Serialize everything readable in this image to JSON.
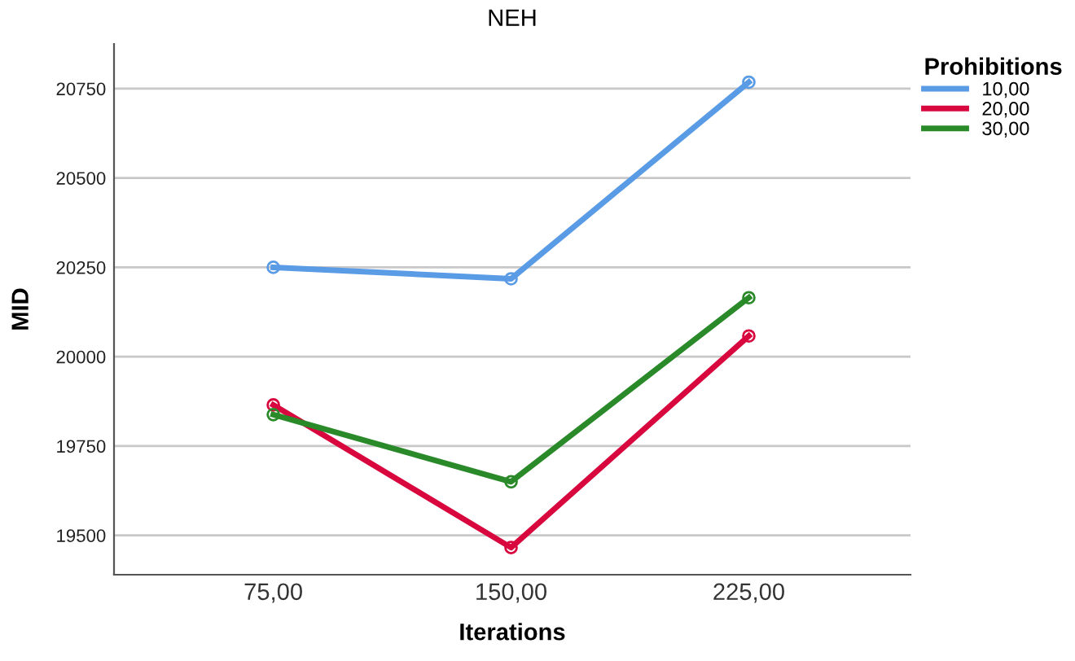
{
  "chart_data": {
    "type": "line",
    "title": "NEH",
    "xlabel": "Iterations",
    "ylabel": "MID",
    "legend_title": "Prohibitions",
    "categories": [
      "75,00",
      "150,00",
      "225,00"
    ],
    "series": [
      {
        "name": "10,00",
        "color": "#5a9be6",
        "values": [
          20250,
          20218,
          20768
        ]
      },
      {
        "name": "20,00",
        "color": "#d8073e",
        "values": [
          19865,
          19466,
          20058
        ]
      },
      {
        "name": "30,00",
        "color": "#2a8a2a",
        "values": [
          19838,
          19650,
          20165
        ]
      }
    ],
    "ylim": [
      19390,
      20875
    ],
    "yticks": [
      19500,
      19750,
      20000,
      20250,
      20500,
      20750
    ],
    "grid": "y",
    "legend": "top right",
    "marker": "circle",
    "line_style": "solid"
  }
}
